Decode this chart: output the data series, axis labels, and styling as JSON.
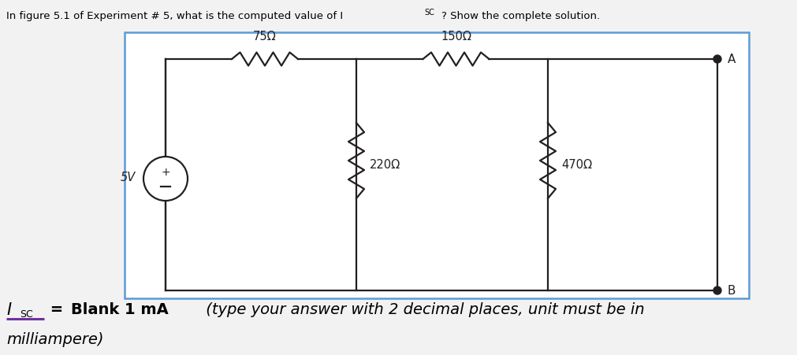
{
  "bg_color": "#f2f2f2",
  "box_color": "#5b9bd5",
  "circuit_color": "#231f20",
  "label_color": "#c55a11",
  "resistors": {
    "R1": "75Ω",
    "R2": "150Ω",
    "R3": "220Ω",
    "R4": "470Ω"
  },
  "voltage_source": "5V",
  "terminal_a": "A",
  "terminal_b": "B",
  "title_main": "In figure 5.1 of Experiment # 5, what is the computed value of I",
  "title_sub": "SC",
  "title_end": "? Show the complete solution.",
  "underline_color": "#7030a0",
  "bottom_isc": "I",
  "bottom_isc_sub": "SC",
  "bottom_eq": " = ",
  "bottom_bold": "Blank 1 mA",
  "bottom_italic": " (type your answer with 2 decimal places, unit must be in",
  "bottom_italic2": "milliampere)"
}
